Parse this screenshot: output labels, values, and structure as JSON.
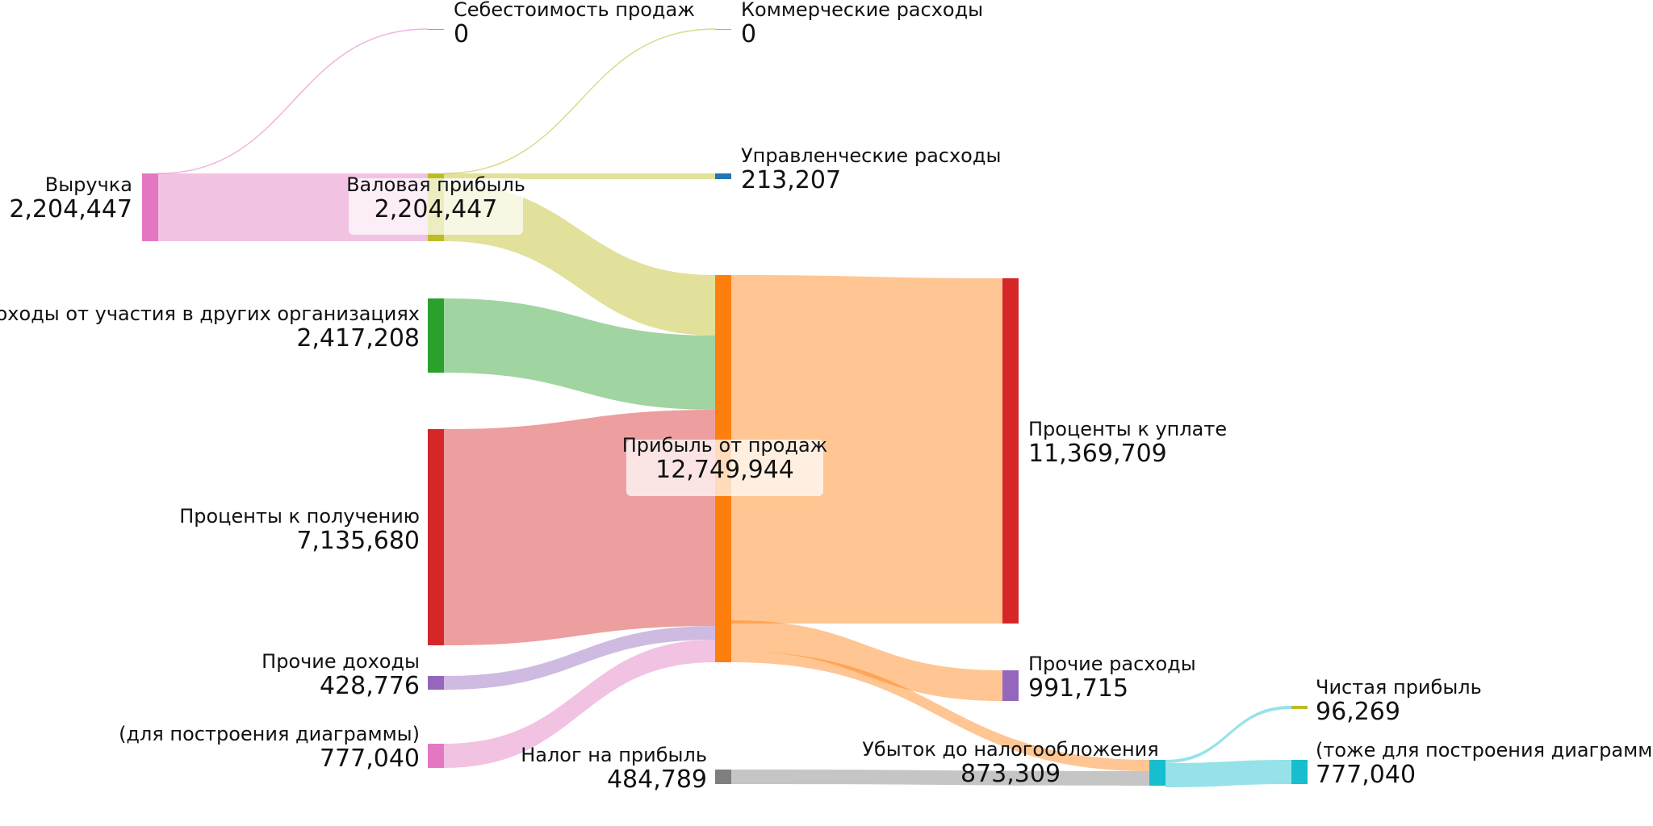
{
  "chart_data": {
    "type": "sankey",
    "nodes": [
      {
        "id": "revenue",
        "label": "Выручка",
        "value": "2,204,447",
        "color": "#e377c2"
      },
      {
        "id": "cogs",
        "label": "Себестоимость продаж",
        "value": "0",
        "color": "#e377c2"
      },
      {
        "id": "gross",
        "label": "Валовая прибыль",
        "value": "2,204,447",
        "color": "#bcbd22"
      },
      {
        "id": "participation",
        "label": "Доходы от участия в других организациях",
        "value": "2,417,208",
        "color": "#2ca02c"
      },
      {
        "id": "int_recv",
        "label": "Проценты к получению",
        "value": "7,135,680",
        "color": "#d62728"
      },
      {
        "id": "other_inc",
        "label": "Прочие доходы",
        "value": "428,776",
        "color": "#9467bd"
      },
      {
        "id": "plug",
        "label": "(для построения диаграммы)",
        "value": "777,040",
        "color": "#e377c2"
      },
      {
        "id": "commercial",
        "label": "Коммерческие расходы",
        "value": "0",
        "color": "#bcbd22"
      },
      {
        "id": "admin",
        "label": "Управленческие расходы",
        "value": "213,207",
        "color": "#1f77b4"
      },
      {
        "id": "sales_profit",
        "label": "Прибыль от продаж",
        "value": "12,749,944",
        "color": "#ff7f0e"
      },
      {
        "id": "tax",
        "label": "Налог на прибыль",
        "value": "484,789",
        "color": "#7f7f7f"
      },
      {
        "id": "int_paid",
        "label": "Проценты к уплате",
        "value": "11,369,709",
        "color": "#d62728"
      },
      {
        "id": "other_exp",
        "label": "Прочие расходы",
        "value": "991,715",
        "color": "#9467bd"
      },
      {
        "id": "pretax_loss",
        "label": "Убыток до налогообложения",
        "value": "873,309",
        "color": "#17becf"
      },
      {
        "id": "net_profit",
        "label": "Чистая прибыль",
        "value": "96,269",
        "color": "#bcbd22"
      },
      {
        "id": "plug2",
        "label": "(тоже для построения диаграммы)",
        "value": "777,040",
        "color": "#17becf"
      }
    ],
    "links": [
      {
        "source": "revenue",
        "target": "cogs",
        "value": 0
      },
      {
        "source": "revenue",
        "target": "gross",
        "value": 2204447
      },
      {
        "source": "gross",
        "target": "commercial",
        "value": 0
      },
      {
        "source": "gross",
        "target": "admin",
        "value": 213207
      },
      {
        "source": "gross",
        "target": "sales_profit",
        "value": 1991240
      },
      {
        "source": "participation",
        "target": "sales_profit",
        "value": 2417208
      },
      {
        "source": "int_recv",
        "target": "sales_profit",
        "value": 7135680
      },
      {
        "source": "other_inc",
        "target": "sales_profit",
        "value": 428776
      },
      {
        "source": "plug",
        "target": "sales_profit",
        "value": 777040
      },
      {
        "source": "sales_profit",
        "target": "int_paid",
        "value": 11369709
      },
      {
        "source": "sales_profit",
        "target": "other_exp",
        "value": 991715
      },
      {
        "source": "sales_profit",
        "target": "pretax_loss",
        "value": 388520
      },
      {
        "source": "tax",
        "target": "pretax_loss",
        "value": 484789
      },
      {
        "source": "pretax_loss",
        "target": "net_profit",
        "value": 96269
      },
      {
        "source": "pretax_loss",
        "target": "plug2",
        "value": 777040
      }
    ]
  }
}
